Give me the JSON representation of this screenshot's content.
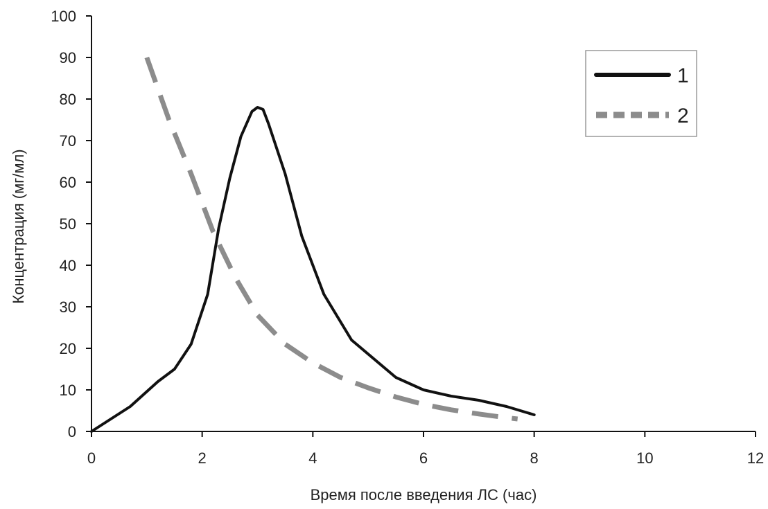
{
  "chart_data": {
    "type": "line",
    "title": "",
    "xlabel": "Время после введения ЛС (час)",
    "ylabel": "Концентрация (мг/мл)",
    "xlim": [
      0,
      12
    ],
    "ylim": [
      0,
      100
    ],
    "xticks": [
      0,
      2,
      4,
      6,
      8,
      10,
      12
    ],
    "yticks": [
      0,
      10,
      20,
      30,
      40,
      50,
      60,
      70,
      80,
      90,
      100
    ],
    "grid": false,
    "legend_position": "top-right",
    "series": [
      {
        "name": "1",
        "color": "#111111",
        "style": "solid",
        "x": [
          0,
          0.7,
          1.2,
          1.5,
          1.8,
          2.1,
          2.3,
          2.5,
          2.7,
          2.9,
          3.0,
          3.1,
          3.2,
          3.5,
          3.8,
          4.2,
          4.7,
          5.5,
          6.0,
          6.5,
          7.0,
          7.5,
          8.0
        ],
        "y": [
          0,
          6,
          12,
          15,
          21,
          33,
          49,
          61,
          71,
          77,
          78,
          77.5,
          74,
          62,
          47,
          33,
          22,
          13,
          10,
          8.5,
          7.5,
          6,
          4
        ]
      },
      {
        "name": "2",
        "color": "#8c8c8c",
        "style": "dashed",
        "x": [
          1.0,
          1.4,
          1.8,
          2.2,
          2.6,
          3.0,
          3.5,
          4.0,
          4.5,
          5.0,
          5.5,
          6.0,
          6.5,
          7.0,
          7.5,
          7.7
        ],
        "y": [
          90,
          75,
          62,
          48,
          37,
          28,
          21,
          16.5,
          13,
          10.5,
          8.3,
          6.5,
          5.2,
          4.2,
          3.3,
          3
        ]
      }
    ]
  }
}
